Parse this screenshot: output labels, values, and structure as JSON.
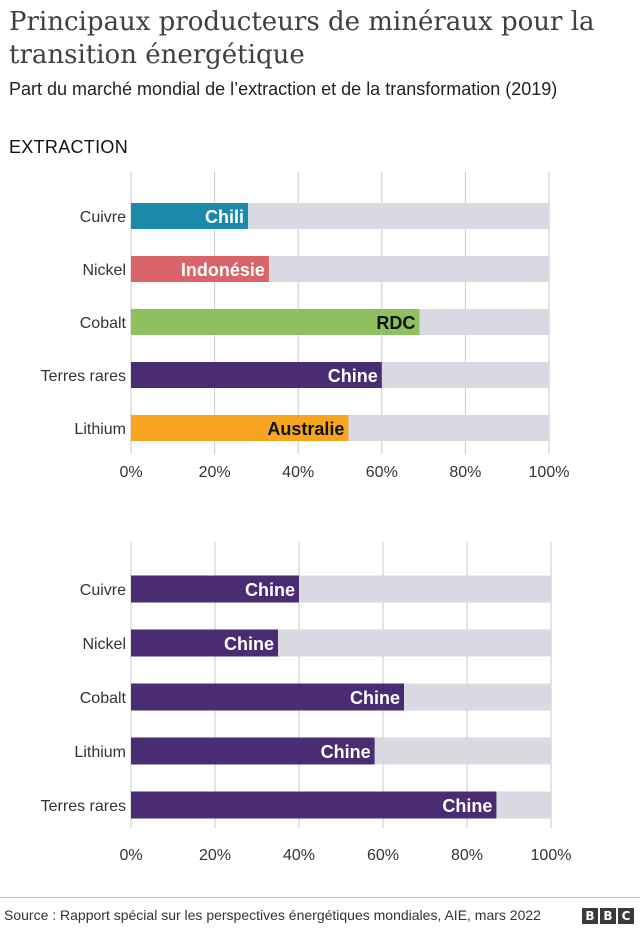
{
  "title": "Principaux producteurs de minéraux pour la transition énergétique",
  "subtitle": "Part du marché mondial de l’extraction et de la transformation (2019)",
  "source": "Source : Rapport spécial sur les perspectives énergétiques mondiales, AIE, mars 2022",
  "logo": [
    "B",
    "B",
    "C"
  ],
  "colors": {
    "background_bar": "#d9d9e2",
    "grid": "#c8c8c8",
    "chili": "#1a8aa8",
    "indonesie": "#d9646a",
    "rdc": "#8fc060",
    "chine": "#4a2c72",
    "australie": "#f7a51e"
  },
  "chart_data": [
    {
      "type": "bar",
      "orientation": "horizontal",
      "section_label": "EXTRACTION",
      "xlim": [
        0,
        100
      ],
      "x_ticks": [
        "0%",
        "20%",
        "40%",
        "60%",
        "80%",
        "100%"
      ],
      "grid": true,
      "categories": [
        "Cuivre",
        "Nickel",
        "Cobalt",
        "Terres rares",
        "Lithium"
      ],
      "values": [
        28,
        33,
        69,
        60,
        52
      ],
      "labels": [
        "Chili",
        "Indonésie",
        "RDC",
        "Chine",
        "Australie"
      ],
      "colors": [
        "#1a8aa8",
        "#d9646a",
        "#8fc060",
        "#4a2c72",
        "#f7a51e"
      ],
      "label_colors": [
        "#ffffff",
        "#ffffff",
        "#111111",
        "#ffffff",
        "#111111"
      ]
    },
    {
      "type": "bar",
      "orientation": "horizontal",
      "xlim": [
        0,
        100
      ],
      "x_ticks": [
        "0%",
        "20%",
        "40%",
        "60%",
        "80%",
        "100%"
      ],
      "grid": true,
      "categories": [
        "Cuivre",
        "Nickel",
        "Cobalt",
        "Lithium",
        "Terres rares"
      ],
      "values": [
        40,
        35,
        65,
        58,
        87
      ],
      "labels": [
        "Chine",
        "Chine",
        "Chine",
        "Chine",
        "Chine"
      ],
      "colors": [
        "#4a2c72",
        "#4a2c72",
        "#4a2c72",
        "#4a2c72",
        "#4a2c72"
      ],
      "label_colors": [
        "#ffffff",
        "#ffffff",
        "#ffffff",
        "#ffffff",
        "#ffffff"
      ]
    }
  ]
}
